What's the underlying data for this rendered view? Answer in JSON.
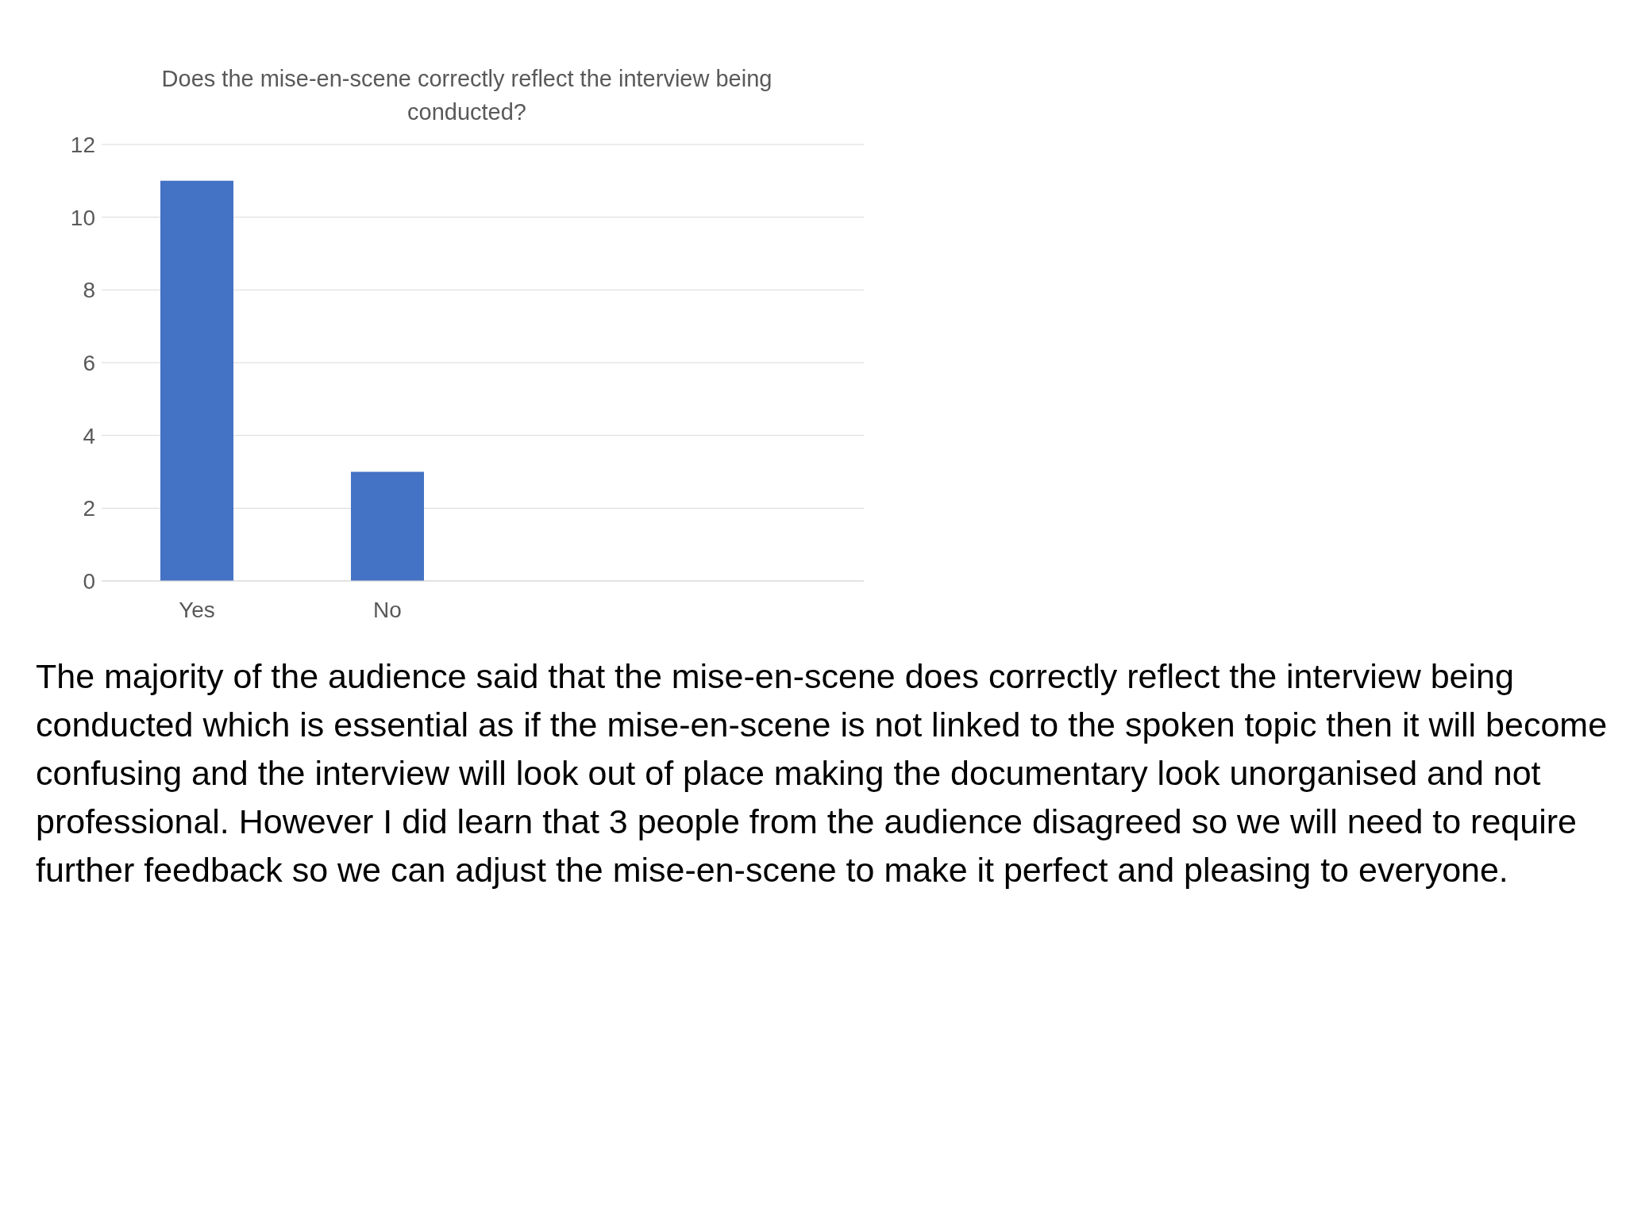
{
  "chart_data": {
    "type": "bar",
    "title": "Does the mise-en-scene correctly reflect the interview being conducted?",
    "categories": [
      "Yes",
      "No",
      null,
      null
    ],
    "values": [
      11,
      3,
      null,
      null
    ],
    "color": "#4472c4",
    "ylim": [
      0,
      12
    ],
    "yticks": [
      0,
      2,
      4,
      6,
      8,
      10,
      12
    ],
    "grid": "y",
    "legend": false,
    "annotations": [
      "The majority of the audience said that the mise-en-scene does correctly reflect the interview being conducted which is essential as if the mise-en-scene is not linked to the spoken topic then it will become confusing and the interview will look out of place making the documentary look unorganised and not professional. However I did learn that 3 people from the audience disagreed so we will need to require further feedback so we can adjust the mise-en-scene to make it perfect and pleasing to everyone."
    ]
  }
}
